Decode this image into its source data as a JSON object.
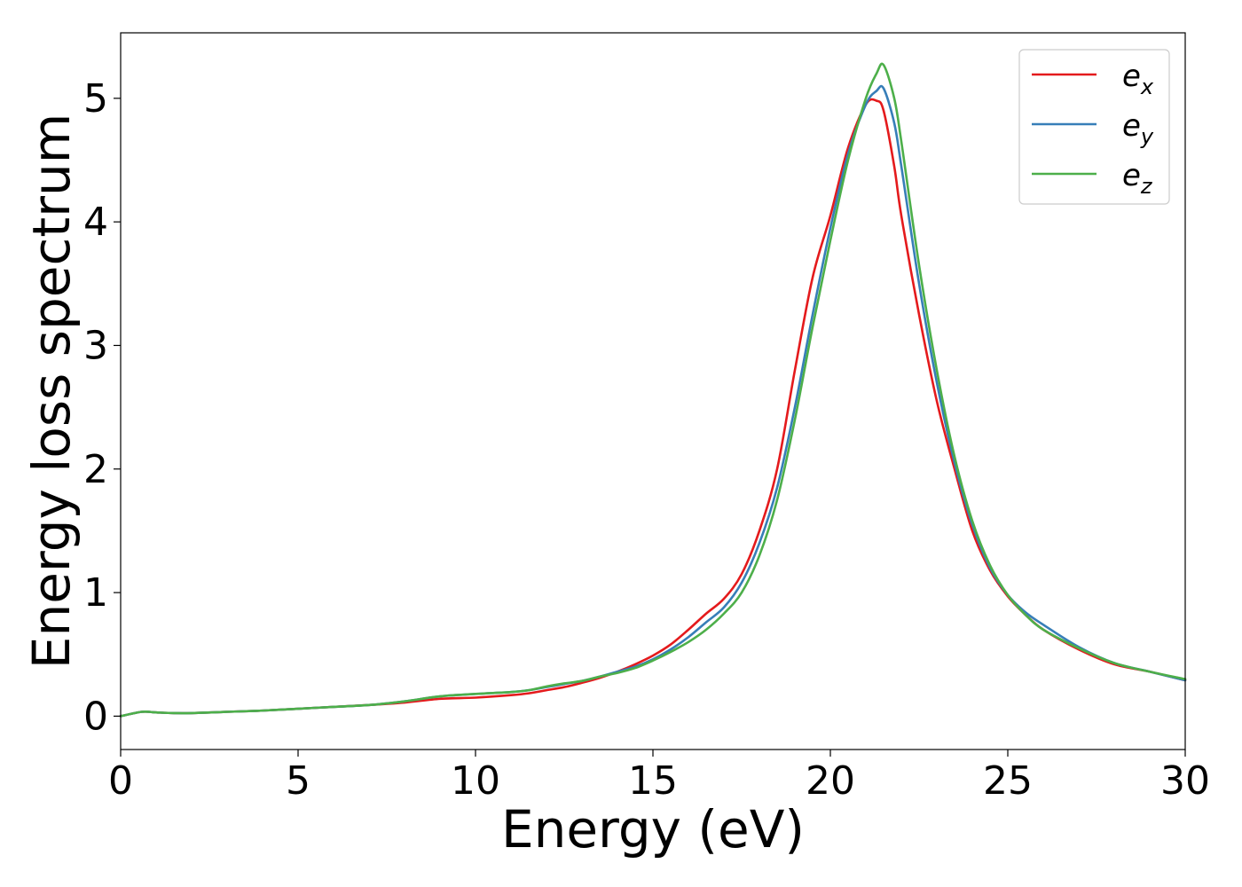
{
  "chart_data": {
    "type": "line",
    "title": "",
    "xlabel": "Energy (eV)",
    "ylabel": "Energy loss spectrum",
    "xlim": [
      0,
      30
    ],
    "ylim": [
      -0.27,
      5.53
    ],
    "xticks": [
      0,
      5,
      10,
      15,
      20,
      25,
      30
    ],
    "yticks": [
      0,
      1,
      2,
      3,
      4,
      5
    ],
    "grid": false,
    "legend": "top-right",
    "series": [
      {
        "name": "e",
        "sub": "x",
        "color": "#e41a1c",
        "x": [
          0,
          0.6,
          1,
          1.5,
          2,
          3,
          4,
          5,
          6,
          7,
          8,
          9,
          10,
          11,
          11.5,
          12,
          12.5,
          13,
          13.5,
          14,
          14.5,
          15,
          15.5,
          16,
          16.5,
          17,
          17.5,
          18,
          18.5,
          19,
          19.5,
          20,
          20.5,
          21,
          21.3,
          21.5,
          21.8,
          22,
          22.5,
          23,
          23.5,
          24,
          24.5,
          25,
          25.5,
          26,
          27,
          28,
          29,
          30
        ],
        "y": [
          0,
          0.035,
          0.03,
          0.025,
          0.025,
          0.035,
          0.045,
          0.06,
          0.075,
          0.09,
          0.11,
          0.14,
          0.15,
          0.17,
          0.185,
          0.21,
          0.235,
          0.27,
          0.31,
          0.36,
          0.42,
          0.49,
          0.58,
          0.7,
          0.83,
          0.95,
          1.15,
          1.5,
          2.0,
          2.8,
          3.55,
          4.05,
          4.6,
          4.95,
          4.98,
          4.9,
          4.45,
          4.05,
          3.25,
          2.55,
          2.0,
          1.5,
          1.18,
          0.97,
          0.82,
          0.7,
          0.54,
          0.42,
          0.36,
          0.29
        ]
      },
      {
        "name": "e",
        "sub": "y",
        "color": "#377eb8",
        "x": [
          0,
          0.6,
          1,
          1.5,
          2,
          3,
          4,
          5,
          6,
          7,
          8,
          9,
          10,
          11,
          11.5,
          12,
          12.5,
          13,
          13.5,
          14,
          14.5,
          15,
          15.5,
          16,
          16.5,
          17,
          17.5,
          18,
          18.5,
          19,
          19.5,
          20,
          20.5,
          21,
          21.3,
          21.5,
          21.8,
          22,
          22.5,
          23,
          23.5,
          24,
          24.5,
          25,
          25.5,
          26,
          27,
          28,
          29,
          30
        ],
        "y": [
          0,
          0.035,
          0.03,
          0.025,
          0.025,
          0.035,
          0.045,
          0.06,
          0.075,
          0.09,
          0.12,
          0.16,
          0.18,
          0.195,
          0.21,
          0.235,
          0.26,
          0.285,
          0.32,
          0.36,
          0.4,
          0.46,
          0.54,
          0.64,
          0.76,
          0.88,
          1.08,
          1.4,
          1.85,
          2.5,
          3.25,
          3.95,
          4.55,
          4.95,
          5.06,
          5.08,
          4.8,
          4.45,
          3.5,
          2.7,
          2.05,
          1.55,
          1.2,
          0.98,
          0.84,
          0.74,
          0.56,
          0.43,
          0.36,
          0.29
        ]
      },
      {
        "name": "e",
        "sub": "z",
        "color": "#4daf4a",
        "x": [
          0,
          0.6,
          1,
          1.5,
          2,
          3,
          4,
          5,
          6,
          7,
          8,
          9,
          10,
          11,
          11.5,
          12,
          12.5,
          13,
          13.5,
          14,
          14.5,
          15,
          15.5,
          16,
          16.5,
          17,
          17.5,
          18,
          18.5,
          19,
          19.5,
          20,
          20.5,
          21,
          21.3,
          21.5,
          21.8,
          22,
          22.5,
          23,
          23.5,
          24,
          24.5,
          25,
          25.5,
          26,
          27,
          28,
          29,
          30
        ],
        "y": [
          0,
          0.035,
          0.03,
          0.025,
          0.025,
          0.035,
          0.045,
          0.06,
          0.075,
          0.09,
          0.12,
          0.16,
          0.18,
          0.195,
          0.21,
          0.24,
          0.265,
          0.285,
          0.32,
          0.35,
          0.39,
          0.45,
          0.52,
          0.6,
          0.7,
          0.83,
          1.0,
          1.3,
          1.75,
          2.4,
          3.15,
          3.85,
          4.5,
          5.0,
          5.2,
          5.27,
          5.0,
          4.65,
          3.65,
          2.8,
          2.1,
          1.58,
          1.22,
          0.98,
          0.82,
          0.7,
          0.55,
          0.43,
          0.36,
          0.3
        ]
      }
    ]
  }
}
